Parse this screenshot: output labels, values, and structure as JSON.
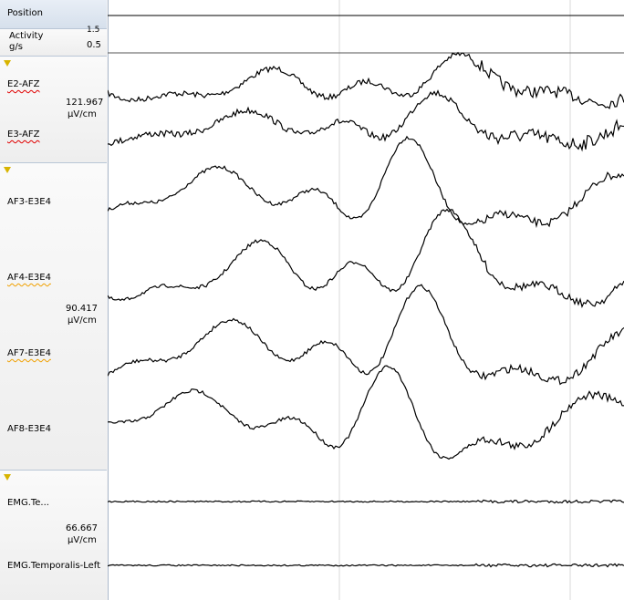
{
  "sidebar": {
    "position": "Position",
    "activity": {
      "label": "Activity",
      "unit": "g/s",
      "scale_top": "1.5",
      "scale_bottom": "0.5"
    },
    "groups": [
      {
        "channels": [
          "E2-AFZ",
          "E3-AFZ"
        ],
        "scale": "121.967",
        "unit": "µV/cm"
      },
      {
        "channels": [
          "AF3-E3E4",
          "AF4-E3E4",
          "AF7-E3E4",
          "AF8-E3E4"
        ],
        "scale": "90.417",
        "unit": "µV/cm"
      },
      {
        "channels": [
          "EMG.Te...",
          "EMG.Temporalis-Left"
        ],
        "scale": "66.667",
        "unit": "µV/cm"
      }
    ]
  }
}
